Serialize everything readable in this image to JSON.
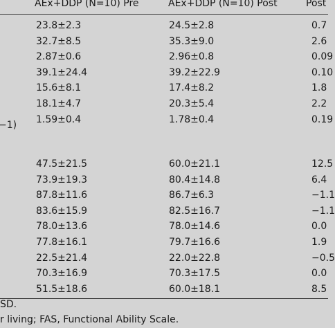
{
  "table": {
    "headers": [
      "AEx+DDP (N=10) Pre",
      "AEx+DDP (N=10) Post",
      "Post"
    ],
    "partial_row_label": "−1)",
    "group1": [
      [
        "23.8±2.3",
        "24.5±2.8",
        "0.7"
      ],
      [
        "32.7±8.5",
        "35.3±9.0",
        "2.6"
      ],
      [
        "2.87±0.6",
        "2.96±0.8",
        "0.09"
      ],
      [
        "39.1±24.4",
        "39.2±22.9",
        "0.10"
      ],
      [
        "15.6±8.1",
        "17.4±8.2",
        "1.8"
      ],
      [
        "18.1±4.7",
        "20.3±5.4",
        "2.2"
      ],
      [
        "1.59±0.4",
        "1.78±0.4",
        "0.19"
      ]
    ],
    "group2": [
      [
        "47.5±21.5",
        "60.0±21.1",
        "12.5"
      ],
      [
        "73.9±19.3",
        "80.4±14.8",
        "6.4"
      ],
      [
        "87.8±11.6",
        "86.7±6.3",
        "−1.1"
      ],
      [
        "83.6±15.9",
        "82.5±16.7",
        "−1.1"
      ],
      [
        "78.0±13.6",
        "78.0±14.6",
        "0.0"
      ],
      [
        "77.8±16.1",
        "79.7±16.6",
        "1.9"
      ],
      [
        "22.5±21.4",
        "22.0±22.8",
        "−0.5"
      ],
      [
        "70.3±16.9",
        "70.3±17.5",
        "0.0"
      ],
      [
        "51.5±18.6",
        "60.0±18.1",
        "8.5"
      ]
    ]
  },
  "footnotes": {
    "line1": "SD.",
    "line2": "r living; FAS, Functional Ability Scale."
  }
}
